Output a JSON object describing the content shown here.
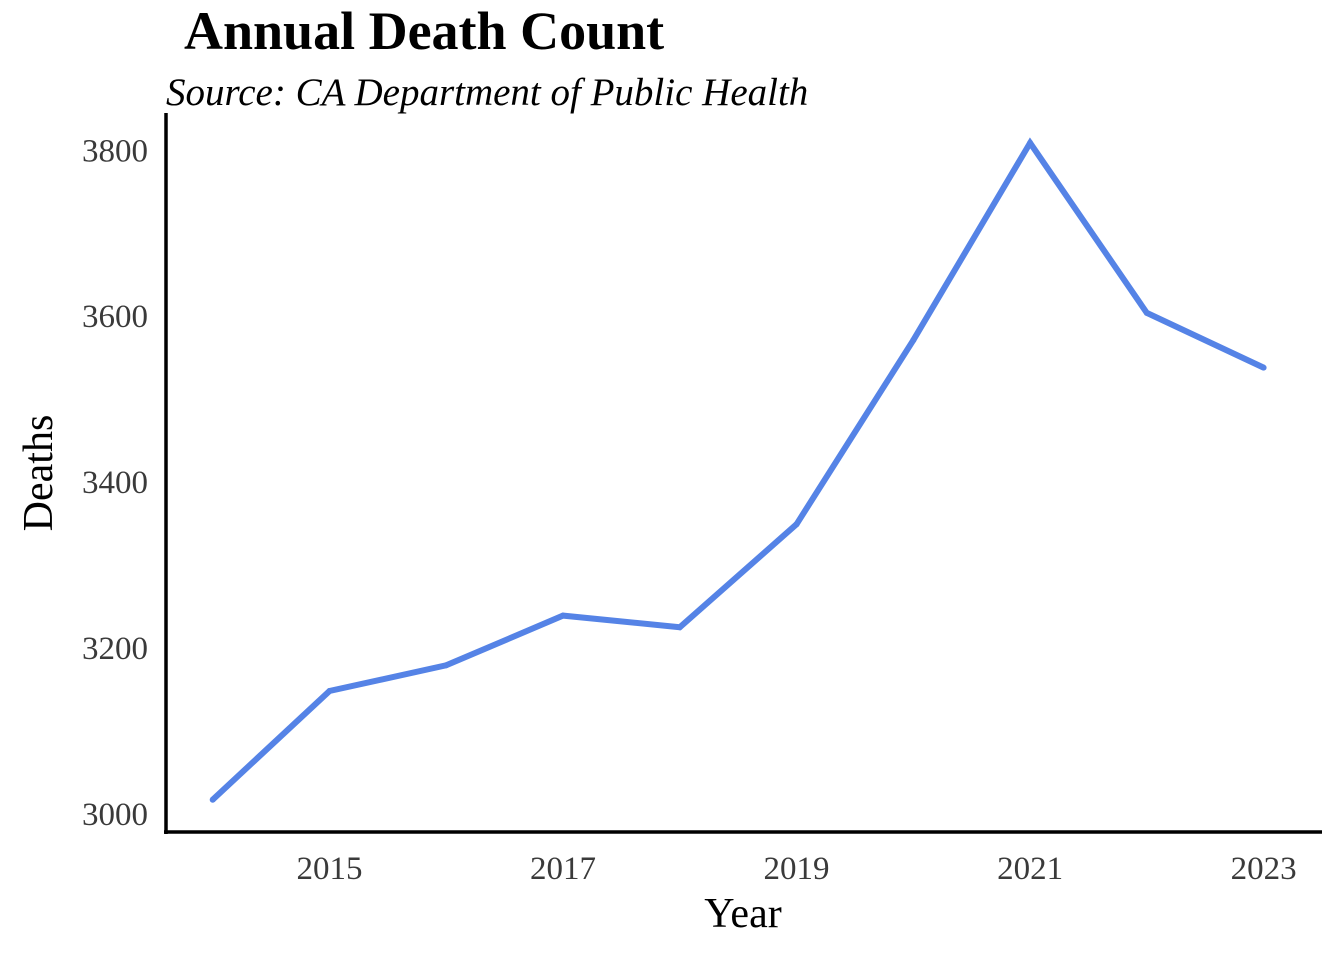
{
  "chart_data": {
    "type": "line",
    "title": "Annual Death Count",
    "subtitle": "Source: CA Department of Public Health",
    "xlabel": "Year",
    "ylabel": "Deaths",
    "x": [
      2014,
      2015,
      2016,
      2017,
      2018,
      2019,
      2020,
      2021,
      2022,
      2023
    ],
    "series": [
      {
        "values": [
          3017,
          3148,
          3179,
          3239,
          3225,
          3349,
          3571,
          3809,
          3604,
          3538
        ],
        "color": "#5583E6"
      }
    ],
    "xlim": [
      2013.6,
      2023.5
    ],
    "ylim": [
      2978,
      3845
    ],
    "x_ticks": [
      2015,
      2017,
      2019,
      2021,
      2023
    ],
    "x_tick_labels": [
      "2015",
      "2017",
      "2019",
      "2021",
      "2023"
    ],
    "y_ticks": [
      3000,
      3200,
      3400,
      3600,
      3800
    ],
    "y_tick_labels": [
      "3000",
      "3200",
      "3400",
      "3600",
      "3800"
    ],
    "grid": false,
    "legend": "none"
  }
}
